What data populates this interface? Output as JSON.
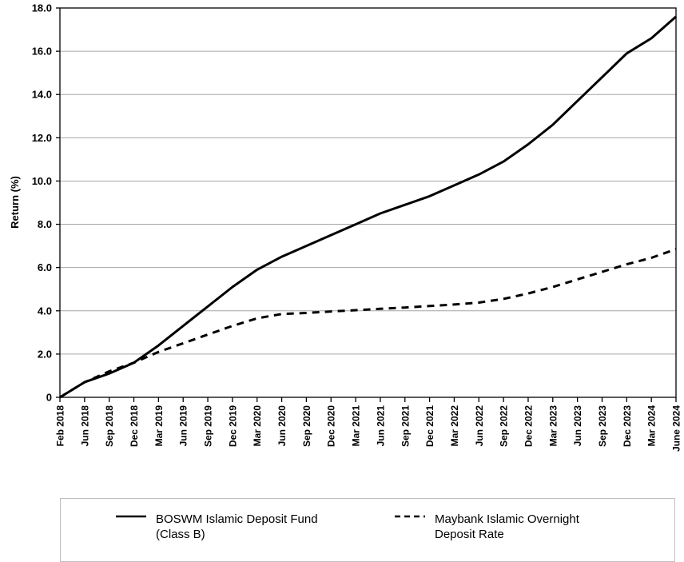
{
  "chart_data": {
    "type": "line",
    "title": "",
    "xlabel": "",
    "ylabel": "Return (%)",
    "ylim": [
      0,
      18
    ],
    "y_ticks": [
      "0",
      "2.0",
      "4.0",
      "6.0",
      "8.0",
      "10.0",
      "12.0",
      "14.0",
      "16.0",
      "18.0"
    ],
    "y_tick_values": [
      0,
      2,
      4,
      6,
      8,
      10,
      12,
      14,
      16,
      18
    ],
    "x_ticks": [
      "Feb 2018",
      "Jun 2018",
      "Sep 2018",
      "Dec 2018",
      "Mar 2019",
      "Jun 2019",
      "Sep 2019",
      "Dec 2019",
      "Mar 2020",
      "Jun 2020",
      "Sep 2020",
      "Dec 2020",
      "Mar 2021",
      "Jun 2021",
      "Sep 2021",
      "Dec 2021",
      "Mar 2022",
      "Jun 2022",
      "Sep 2022",
      "Dec 2022",
      "Mar 2023",
      "Jun 2023",
      "Sep 2023",
      "Dec 2023",
      "Mar 2024",
      "June 2024"
    ],
    "grid": true,
    "legend_position": "bottom",
    "series": [
      {
        "name": "BOSWM Islamic Deposit Fund\n(Class B)",
        "style": "solid",
        "color": "#000000",
        "values": [
          0,
          0.7,
          1.1,
          1.6,
          2.4,
          3.3,
          4.2,
          5.1,
          5.9,
          6.5,
          7.0,
          7.5,
          8.0,
          8.5,
          8.9,
          9.3,
          9.8,
          10.3,
          10.9,
          11.7,
          12.6,
          13.7,
          14.8,
          15.9,
          16.6,
          17.6
        ]
      },
      {
        "name": "Maybank Islamic Overnight\nDeposit Rate",
        "style": "dashed",
        "color": "#000000",
        "values": [
          0,
          0.7,
          1.2,
          1.6,
          2.1,
          2.5,
          2.9,
          3.3,
          3.65,
          3.85,
          3.9,
          3.97,
          4.03,
          4.09,
          4.15,
          4.22,
          4.29,
          4.38,
          4.55,
          4.8,
          5.1,
          5.45,
          5.8,
          6.15,
          6.45,
          6.85
        ]
      }
    ]
  }
}
